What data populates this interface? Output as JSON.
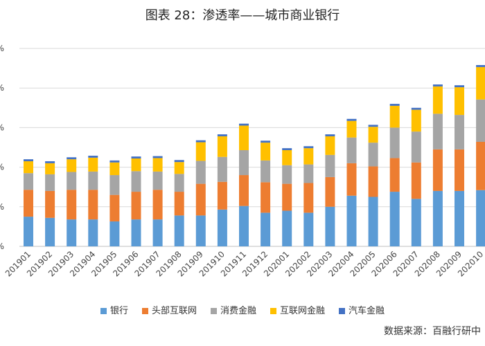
{
  "title": "图表 28：渗透率——城市商业银行",
  "source": "数据来源：百融行研中",
  "chart_data": {
    "type": "bar",
    "stacked": true,
    "categories": [
      "201901",
      "201902",
      "201903",
      "201904",
      "201905",
      "201906",
      "201907",
      "201908",
      "201909",
      "201910",
      "201911",
      "201912",
      "202001",
      "202002",
      "202003",
      "202004",
      "202005",
      "202006",
      "202007",
      "202008",
      "202009",
      "202010"
    ],
    "series": [
      {
        "name": "银行",
        "color": "#5B9BD5",
        "values": [
          7.5,
          7.2,
          6.8,
          6.8,
          6.3,
          6.8,
          6.8,
          7.8,
          7.8,
          9.3,
          10.2,
          8.5,
          9.0,
          8.5,
          10.0,
          12.8,
          12.5,
          13.8,
          12.0,
          14.0,
          14.0,
          14.2
        ]
      },
      {
        "name": "头部互联网",
        "color": "#ED7D31",
        "values": [
          6.8,
          6.8,
          7.5,
          7.5,
          6.7,
          7.0,
          7.5,
          6.0,
          8.0,
          7.0,
          7.8,
          7.7,
          6.8,
          7.5,
          7.5,
          8.2,
          7.7,
          8.5,
          9.2,
          10.5,
          10.5,
          12.2
        ]
      },
      {
        "name": "消费金融",
        "color": "#A5A5A5",
        "values": [
          4.2,
          4.2,
          4.5,
          4.6,
          5.0,
          5.2,
          4.6,
          4.5,
          5.8,
          6.3,
          6.3,
          5.5,
          4.7,
          4.7,
          5.6,
          6.5,
          6.0,
          7.7,
          7.8,
          9.0,
          8.7,
          10.7
        ]
      },
      {
        "name": "互联网金融",
        "color": "#FFC000",
        "values": [
          3.0,
          2.8,
          3.2,
          3.5,
          3.2,
          3.2,
          3.4,
          3.0,
          4.7,
          5.2,
          6.2,
          4.5,
          3.8,
          4.1,
          4.7,
          4.2,
          4.0,
          5.5,
          5.5,
          6.9,
          7.0,
          8.2
        ]
      },
      {
        "name": "汽车金融",
        "color": "#4472C4",
        "values": [
          0.5,
          0.5,
          0.5,
          0.5,
          0.5,
          0.5,
          0.5,
          0.5,
          0.5,
          0.5,
          0.5,
          0.5,
          0.5,
          0.5,
          0.5,
          0.5,
          0.5,
          0.5,
          0.5,
          0.5,
          0.5,
          0.5
        ]
      }
    ],
    "ylim": [
      0,
      50
    ],
    "yticks": [
      0,
      10,
      20,
      30,
      40,
      50
    ],
    "ytick_labels": [
      "%",
      "%",
      "%",
      "%",
      "%",
      "%"
    ],
    "grid": true,
    "legend_position": "bottom"
  }
}
